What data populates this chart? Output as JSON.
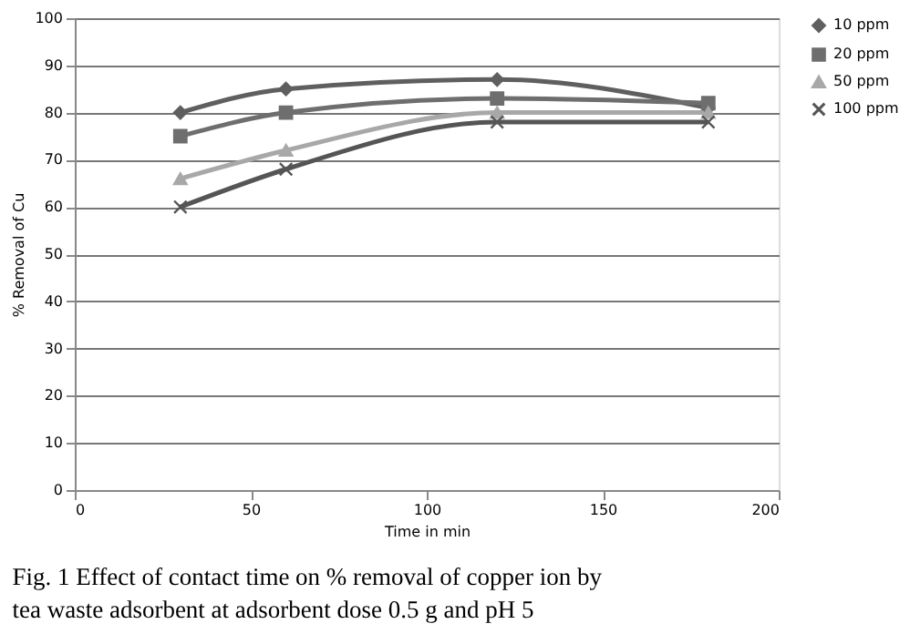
{
  "chart_data": {
    "type": "line",
    "xlabel": "Time in min",
    "ylabel": "% Removal of Cu",
    "x": [
      30,
      60,
      120,
      180
    ],
    "series": [
      {
        "name": "10 ppm",
        "color": "#5f5f5f",
        "marker": "diamond",
        "values": [
          80,
          85,
          87,
          81
        ]
      },
      {
        "name": "20 ppm",
        "color": "#6e6e6e",
        "marker": "square",
        "values": [
          75,
          80,
          83,
          82
        ]
      },
      {
        "name": "50 ppm",
        "color": "#a8a8a8",
        "marker": "triangle",
        "values": [
          66,
          72,
          80,
          80
        ]
      },
      {
        "name": "100 ppm",
        "color": "#555555",
        "marker": "cross",
        "values": [
          60,
          68,
          78,
          78
        ]
      }
    ],
    "xlim": [
      0,
      200
    ],
    "xticks": [
      0,
      50,
      100,
      150,
      200
    ],
    "ylim": [
      0,
      100
    ],
    "yticks": [
      0,
      10,
      20,
      30,
      40,
      50,
      60,
      70,
      80,
      90,
      100
    ],
    "grid": "y",
    "legend": "right",
    "annotations": [
      "Fig. 1 Effect of contact time on % removal of copper ion by tea waste adsorbent at adsorbent dose 0.5 g and pH 5"
    ]
  }
}
